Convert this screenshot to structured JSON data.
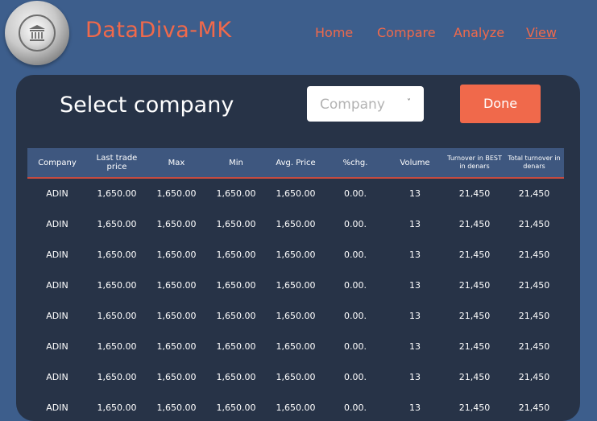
{
  "brand": {
    "name": "DataDiva-MK",
    "logo_icon": "bank-building-icon"
  },
  "nav": [
    {
      "label": "Home"
    },
    {
      "label": "Compare"
    },
    {
      "label": "Analyze"
    },
    {
      "label": "View",
      "active": true
    }
  ],
  "panel": {
    "title": "Select company",
    "dropdown": {
      "value": "Company",
      "chevron": "˅"
    },
    "done_label": "Done"
  },
  "table": {
    "columns": [
      "Company",
      "Last trade price",
      "Max",
      "Min",
      "Avg. Price",
      "%chg.",
      "Volume",
      "Turnover in BEST in denars",
      "Total turnover in denars"
    ],
    "rows": [
      [
        "ADIN",
        "1,650.00",
        "1,650.00",
        "1,650.00",
        "1,650.00",
        "0.00.",
        "13",
        "21,450",
        "21,450"
      ],
      [
        "ADIN",
        "1,650.00",
        "1,650.00",
        "1,650.00",
        "1,650.00",
        "0.00.",
        "13",
        "21,450",
        "21,450"
      ],
      [
        "ADIN",
        "1,650.00",
        "1,650.00",
        "1,650.00",
        "1,650.00",
        "0.00.",
        "13",
        "21,450",
        "21,450"
      ],
      [
        "ADIN",
        "1,650.00",
        "1,650.00",
        "1,650.00",
        "1,650.00",
        "0.00.",
        "13",
        "21,450",
        "21,450"
      ],
      [
        "ADIN",
        "1,650.00",
        "1,650.00",
        "1,650.00",
        "1,650.00",
        "0.00.",
        "13",
        "21,450",
        "21,450"
      ],
      [
        "ADIN",
        "1,650.00",
        "1,650.00",
        "1,650.00",
        "1,650.00",
        "0.00.",
        "13",
        "21,450",
        "21,450"
      ],
      [
        "ADIN",
        "1,650.00",
        "1,650.00",
        "1,650.00",
        "1,650.00",
        "0.00.",
        "13",
        "21,450",
        "21,450"
      ],
      [
        "ADIN",
        "1,650.00",
        "1,650.00",
        "1,650.00",
        "1,650.00",
        "0.00.",
        "13",
        "21,450",
        "21,450"
      ]
    ]
  },
  "colors": {
    "background": "#3d5e8c",
    "panel": "#273347",
    "accent": "#f0694b",
    "table_header": "#3e577f"
  }
}
